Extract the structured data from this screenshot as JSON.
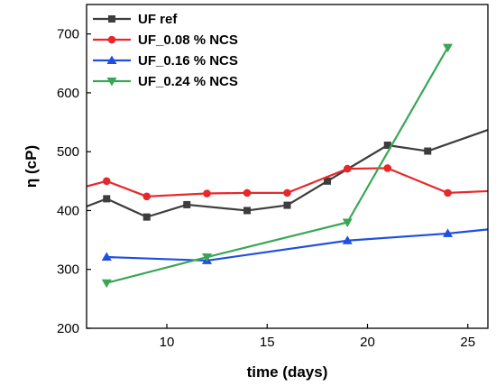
{
  "chart_data": {
    "type": "line",
    "xlabel": "time (days)",
    "ylabel": "η (cP)",
    "xlim": [
      6,
      26
    ],
    "ylim": [
      200,
      750
    ],
    "xticks": [
      10,
      15,
      20,
      25
    ],
    "yticks": [
      200,
      300,
      400,
      500,
      600,
      700
    ],
    "legend_position": "top-left",
    "grid": false,
    "series": [
      {
        "name": "UF ref",
        "color": "#3d3d3d",
        "marker": "square",
        "x": [
          6,
          7,
          9,
          11,
          14,
          16,
          18,
          21,
          23,
          26
        ],
        "y": [
          407,
          420,
          389,
          410,
          400,
          409,
          450,
          511,
          501,
          537
        ]
      },
      {
        "name": "UF_0.08 % NCS",
        "color": "#e8272a",
        "marker": "circle",
        "x": [
          6,
          7,
          9,
          12,
          14,
          16,
          19,
          21,
          24,
          26
        ],
        "y": [
          441,
          450,
          424,
          429,
          430,
          430,
          471,
          472,
          430,
          433
        ]
      },
      {
        "name": "UF_0.16 % NCS",
        "color": "#1f4fe0",
        "marker": "triangle-up",
        "x": [
          7,
          12,
          19,
          24,
          26
        ],
        "y": [
          321,
          315,
          349,
          361,
          368
        ]
      },
      {
        "name": "UF_0.24 % NCS",
        "color": "#3aa655",
        "marker": "triangle-down",
        "x": [
          7,
          12,
          19,
          24
        ],
        "y": [
          277,
          321,
          380,
          677
        ]
      }
    ]
  }
}
